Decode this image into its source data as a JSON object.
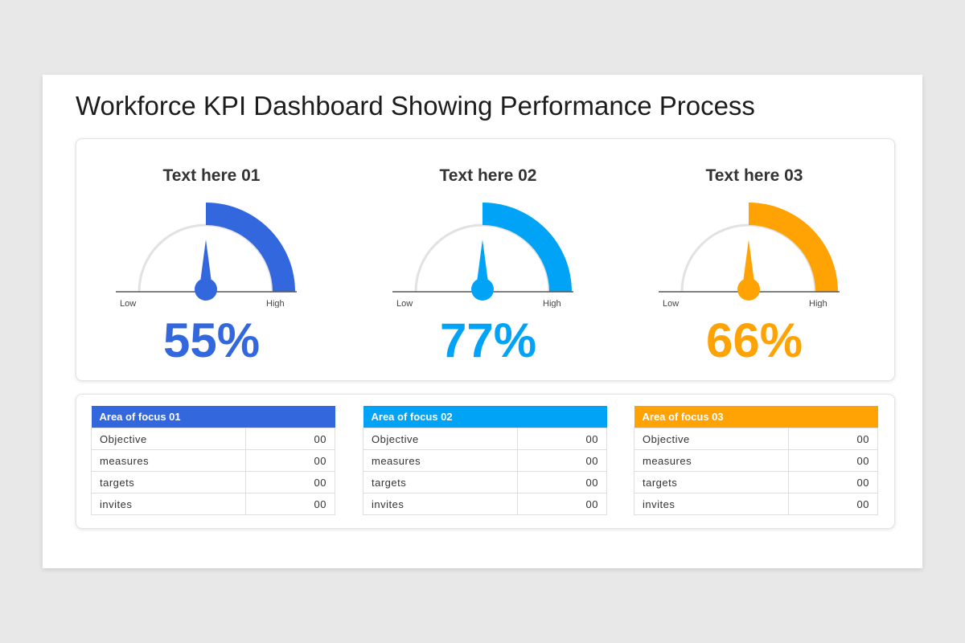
{
  "title": "Workforce KPI Dashboard Showing Performance Process",
  "gauges": [
    {
      "label": "Text here 01",
      "value": "55%",
      "color": "#3367de",
      "low": "Low",
      "high": "High"
    },
    {
      "label": "Text here 02",
      "value": "77%",
      "color": "#00a3f5",
      "low": "Low",
      "high": "High"
    },
    {
      "label": "Text here 03",
      "value": "66%",
      "color": "#ffa305",
      "low": "Low",
      "high": "High"
    }
  ],
  "tables": [
    {
      "header": "Area of focus 01",
      "color": "#3367de",
      "rows": [
        {
          "k": "Objective",
          "v": "00"
        },
        {
          "k": "measures",
          "v": "00"
        },
        {
          "k": "targets",
          "v": "00"
        },
        {
          "k": "invites",
          "v": "00"
        }
      ]
    },
    {
      "header": "Area of focus 02",
      "color": "#00a3f5",
      "rows": [
        {
          "k": "Objective",
          "v": "00"
        },
        {
          "k": "measures",
          "v": "00"
        },
        {
          "k": "targets",
          "v": "00"
        },
        {
          "k": "invites",
          "v": "00"
        }
      ]
    },
    {
      "header": "Area of focus 03",
      "color": "#ffa305",
      "rows": [
        {
          "k": "Objective",
          "v": "00"
        },
        {
          "k": "measures",
          "v": "00"
        },
        {
          "k": "targets",
          "v": "00"
        },
        {
          "k": "invites",
          "v": "00"
        }
      ]
    }
  ]
}
